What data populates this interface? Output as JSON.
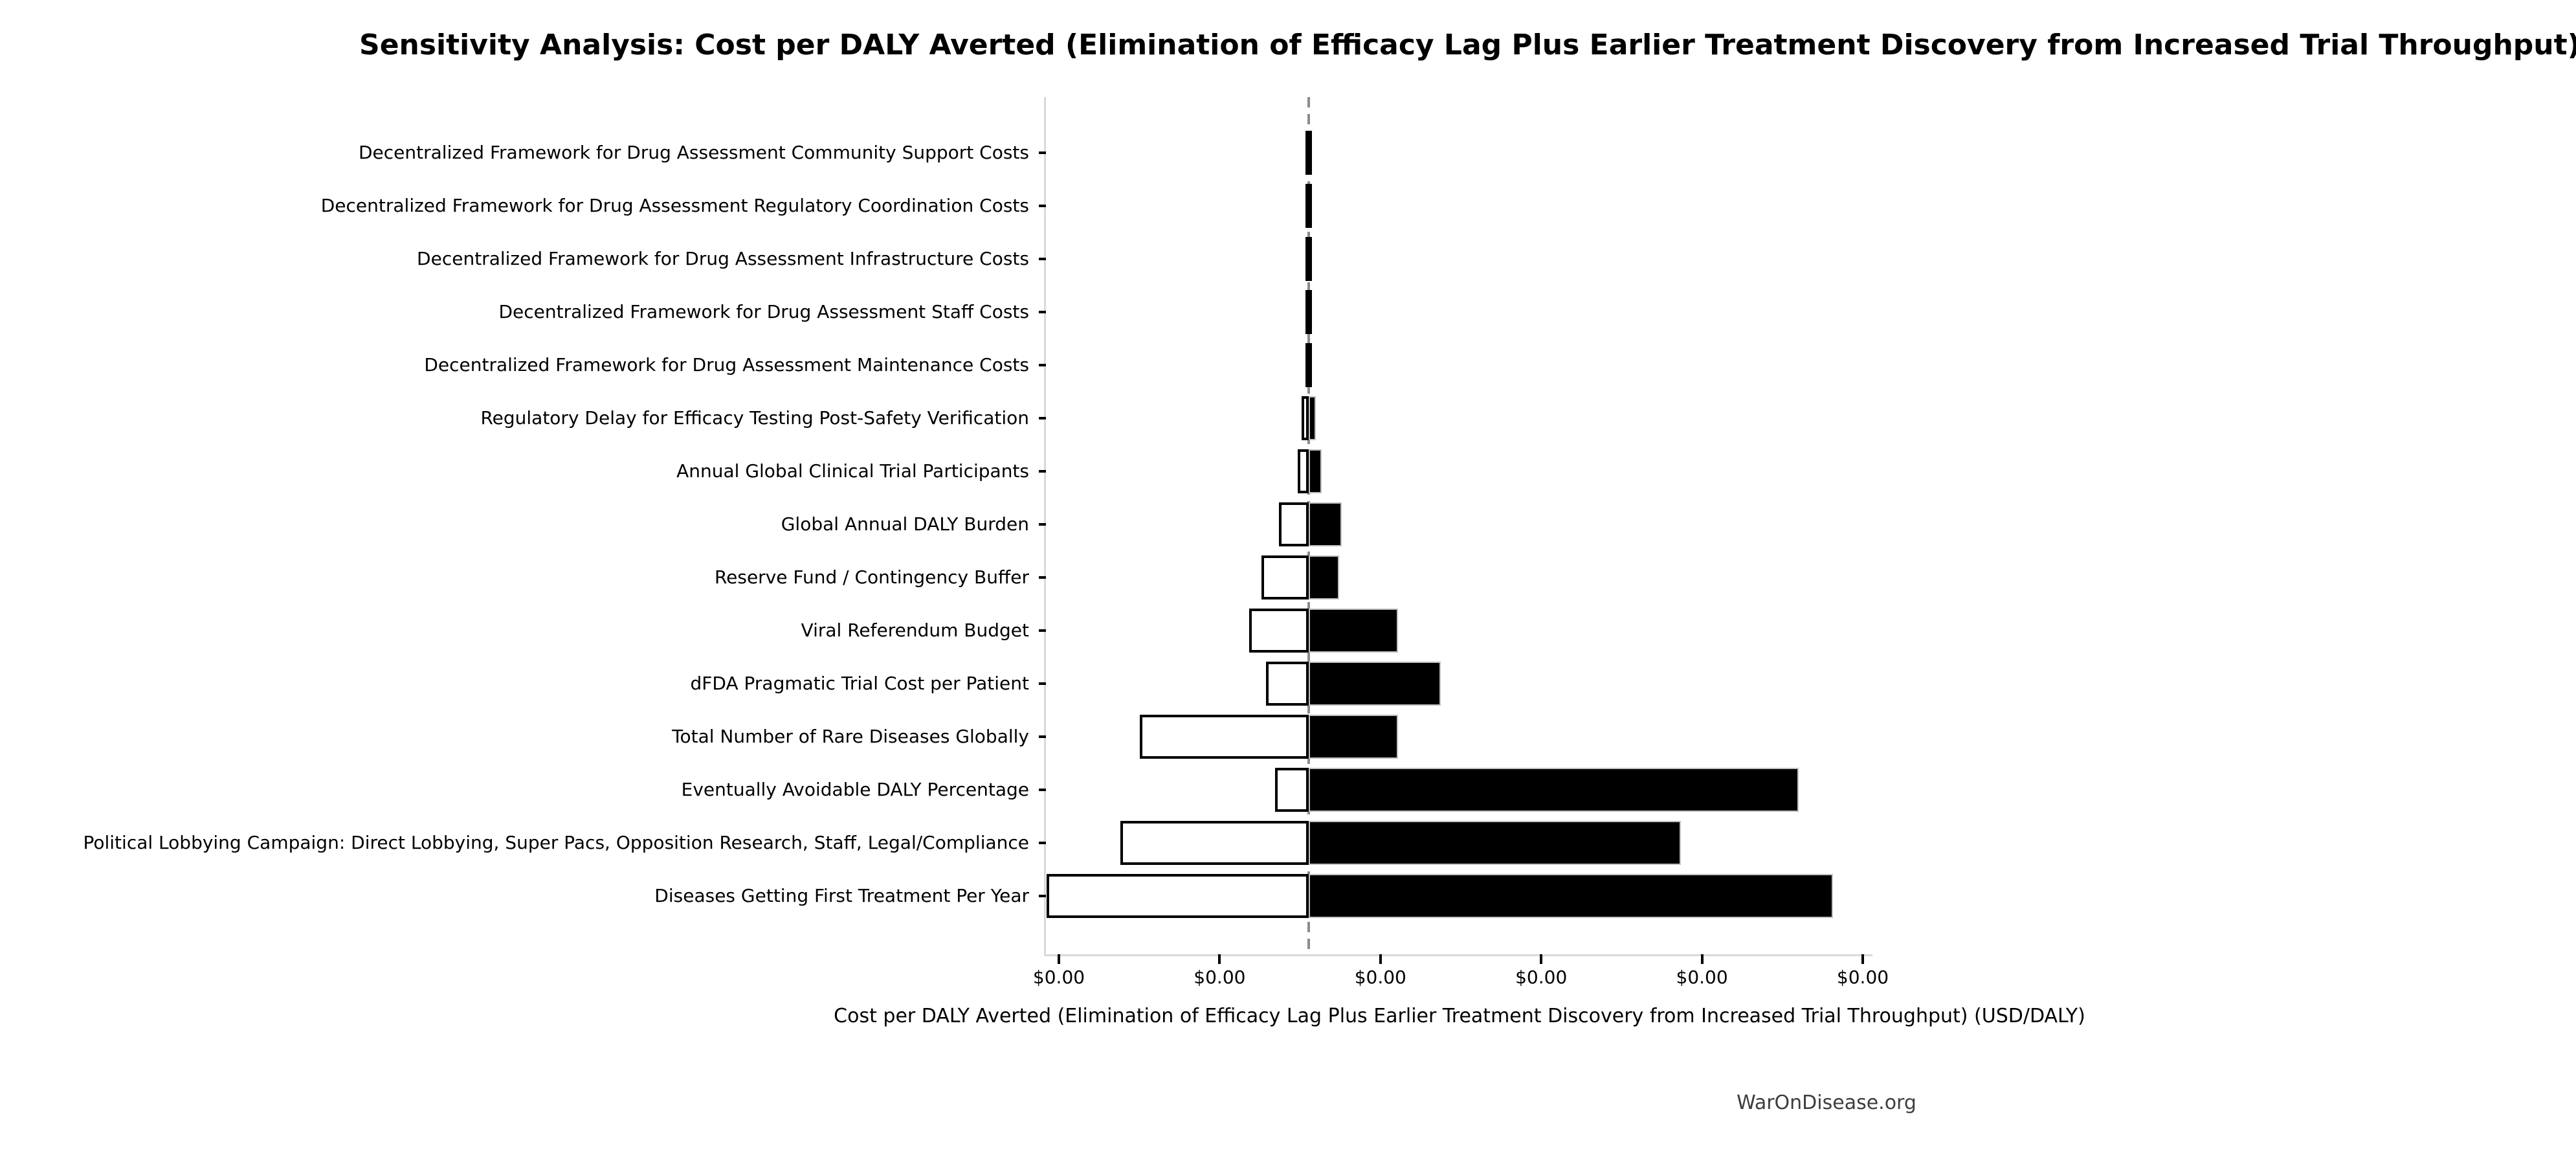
{
  "title": "Sensitivity Analysis: Cost per DALY Averted (Elimination of Efficacy Lag Plus Earlier Treatment Discovery from Increased Trial Throughput)",
  "footer": "WarOnDisease.org",
  "chart_data": {
    "type": "bar",
    "subtype": "tornado-sensitivity",
    "orientation": "horizontal",
    "title": "Sensitivity Analysis: Cost per DALY Averted (Elimination of Efficacy Lag Plus Earlier Treatment Discovery from Increased Trial Throughput)",
    "xlabel": "Cost per DALY Averted (Elimination of Efficacy Lag Plus Earlier Treatment Discovery from Increased Trial Throughput) (USD/DALY)",
    "ylabel": "",
    "x_tick_labels": [
      "$0.00",
      "$0.00",
      "$0.00",
      "$0.00",
      "$0.00",
      "$0.00"
    ],
    "baseline_tick_units": 1.554,
    "units_note": "bar extents measured in x-tick-interval units relative to the dashed baseline; all tick labels render as $0.00",
    "grid": false,
    "legend": null,
    "series": [
      {
        "label": "Decentralized Framework for Drug Assessment Community Support Costs",
        "low": -0.014,
        "high": 0.014
      },
      {
        "label": "Decentralized Framework for Drug Assessment Regulatory Coordination Costs",
        "low": -0.014,
        "high": 0.014
      },
      {
        "label": "Decentralized Framework for Drug Assessment Infrastructure Costs",
        "low": -0.014,
        "high": 0.014
      },
      {
        "label": "Decentralized Framework for Drug Assessment Staff Costs",
        "low": -0.014,
        "high": 0.014
      },
      {
        "label": "Decentralized Framework for Drug Assessment Maintenance Costs",
        "low": -0.014,
        "high": 0.014
      },
      {
        "label": "Regulatory Delay for Efficacy Testing Post-Safety Verification",
        "low": -0.044,
        "high": 0.044
      },
      {
        "label": "Annual Global Clinical Trial Participants",
        "low": -0.068,
        "high": 0.081
      },
      {
        "label": "Global Annual DALY Burden",
        "low": -0.185,
        "high": 0.205
      },
      {
        "label": "Reserve Fund / Contingency Buffer",
        "low": -0.294,
        "high": 0.189
      },
      {
        "label": "Viral Referendum Budget",
        "low": -0.37,
        "high": 0.556
      },
      {
        "label": "dFDA Pragmatic Trial Cost per Patient",
        "low": -0.266,
        "high": 0.821
      },
      {
        "label": "Total Number of Rare Diseases Globally",
        "low": -1.051,
        "high": 0.556
      },
      {
        "label": "Eventually Avoidable DALY Percentage",
        "low": -0.209,
        "high": 3.048
      },
      {
        "label": "Political Lobbying Campaign: Direct Lobbying, Super Pacs, Opposition Research, Staff, Legal/Compliance",
        "low": -1.171,
        "high": 2.315
      },
      {
        "label": "Diseases Getting First Treatment Per Year",
        "low": -1.63,
        "high": 3.261
      }
    ],
    "colors": {
      "low_fill": "#ffffff",
      "low_edge": "#000000",
      "high_fill": "#000000",
      "high_edge": "#c0c0c0",
      "baseline_line": "#8c8c8c",
      "spine": "#d9d9d9",
      "tick": "#000000",
      "footer_text": "#3d3d3d"
    }
  }
}
